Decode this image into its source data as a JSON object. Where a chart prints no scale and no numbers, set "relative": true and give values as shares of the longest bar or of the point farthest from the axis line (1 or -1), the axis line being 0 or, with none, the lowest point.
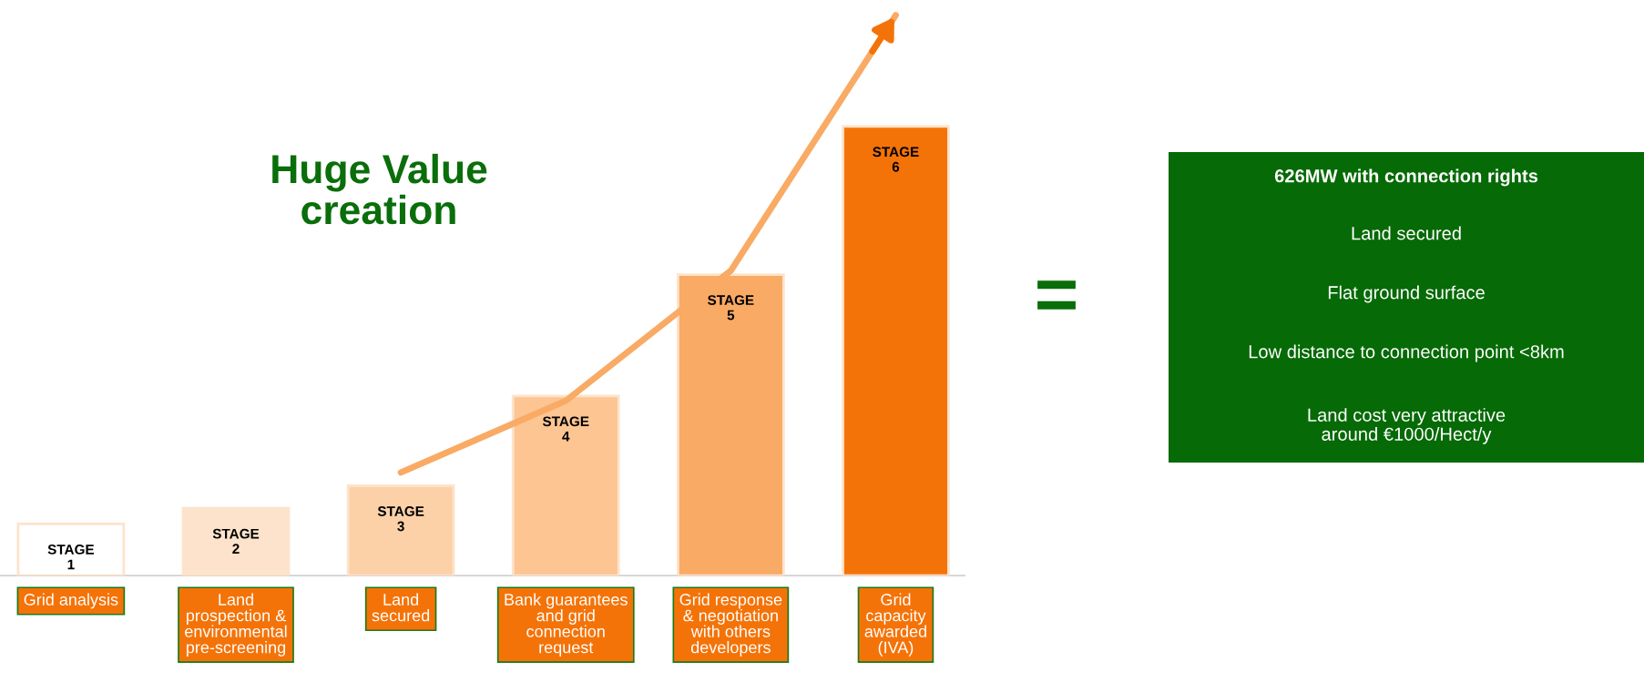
{
  "chart_data": {
    "type": "bar",
    "relative": true,
    "title": "Huge Value\ncreation",
    "categories": [
      "Grid analysis",
      "Land\nprospection &\nenvironmental\npre-screening",
      "Land\nsecured",
      "Bank guarantees\nand grid\nconnection\nrequest",
      "Grid response\n& negotiation\nwith others\ndevelopers",
      "Grid\ncapacity\nawarded\n(IVA)"
    ],
    "values": [
      0.115,
      0.15,
      0.2,
      0.4,
      0.67,
      1.0
    ],
    "series": [
      {
        "type": "line",
        "axis": "y2",
        "color": "#f9aa64",
        "values": [
          null,
          null,
          0.184,
          0.312,
          0.544,
          1.0
        ]
      }
    ],
    "colors": [
      "#ffffff",
      "#fde3cb",
      "#fcd1a8",
      "#fcc592",
      "#f9aa64",
      "#f47308"
    ],
    "annotations": [
      "STAGE\n1",
      "STAGE\n2",
      "STAGE\n3",
      "STAGE\n4",
      "STAGE\n5",
      "STAGE\n6",
      "=",
      "626MW with connection rights",
      "Land secured",
      "Flat ground surface",
      "Low distance to connection point <8km",
      "Land cost very attractive\naround €1000/Hect/y"
    ]
  }
}
